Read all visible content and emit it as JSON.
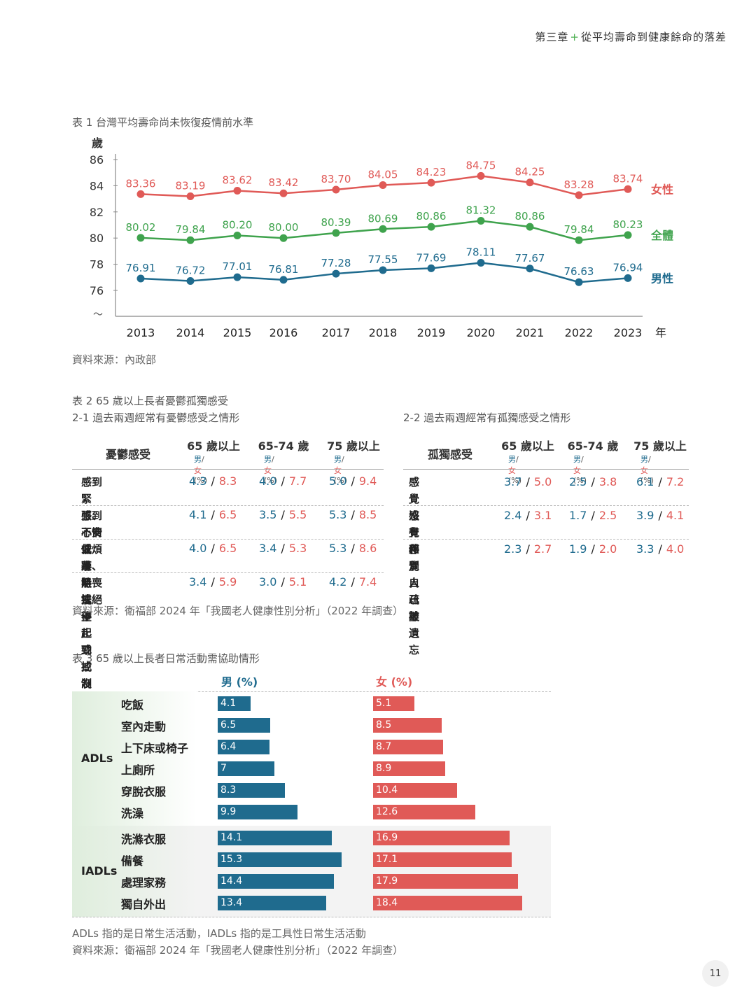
{
  "header": {
    "chapter": "第三章",
    "title": "從平均壽命到健康餘命的落差"
  },
  "table1": {
    "caption": "表 1  台灣平均壽命尚未恢復疫情前水準",
    "source": "資料來源：內政部",
    "colors": {
      "female": "#e05a57",
      "total": "#3fa34d",
      "male": "#1f6b8e"
    },
    "chart_data": {
      "type": "line",
      "ylabel": "歲",
      "xlabel": "年",
      "y_ticks": [
        "86",
        "84",
        "82",
        "80",
        "78",
        "76"
      ],
      "y_break": "～",
      "ylim": [
        75,
        86
      ],
      "x": [
        "2013",
        "2014",
        "2015",
        "2016",
        "2017",
        "2018",
        "2019",
        "2020",
        "2021",
        "2022",
        "2023"
      ],
      "series": [
        {
          "name": "女性",
          "values": [
            83.36,
            83.19,
            83.62,
            83.42,
            83.7,
            84.05,
            84.23,
            84.75,
            84.25,
            83.28,
            83.74
          ],
          "labels": [
            "83.36",
            "83.19",
            "83.62",
            "83.42",
            "83.70",
            "84.05",
            "84.23",
            "84.75",
            "84.25",
            "83.28",
            "83.74"
          ]
        },
        {
          "name": "全體",
          "values": [
            80.02,
            79.84,
            80.2,
            80.0,
            80.39,
            80.69,
            80.86,
            81.32,
            80.86,
            79.84,
            80.23
          ],
          "labels": [
            "80.02",
            "79.84",
            "80.20",
            "80.00",
            "80.39",
            "80.69",
            "80.86",
            "81.32",
            "80.86",
            "79.84",
            "80.23"
          ]
        },
        {
          "name": "男性",
          "values": [
            76.91,
            76.72,
            77.01,
            76.81,
            77.28,
            77.55,
            77.69,
            78.11,
            77.67,
            76.63,
            76.94
          ],
          "labels": [
            "76.91",
            "76.72",
            "77.01",
            "76.81",
            "77.28",
            "77.55",
            "77.69",
            "78.11",
            "77.67",
            "76.63",
            "76.94"
          ]
        }
      ]
    }
  },
  "table2": {
    "caption": "表 2  65 歲以上長者憂鬱孤獨感受",
    "left_title": "2-1  過去兩週經常有憂鬱感受之情形",
    "right_title": "2-2  過去兩週經常有孤獨感受之情形",
    "col_heads": [
      "65 歲以上",
      "65-74 歲",
      "75 歲以上"
    ],
    "sub_male": "男",
    "sub_sep": "/",
    "sub_female": "女",
    "sub_unit": " (%)",
    "left_head": "憂鬱感受",
    "right_head": "孤獨感受",
    "left_rows": [
      {
        "label1": "感到緊張、",
        "label2": "不安或煩躁",
        "vals": [
          [
            "4.3",
            "8.3"
          ],
          [
            "4.0",
            "7.7"
          ],
          [
            "5.0",
            "9.4"
          ]
        ]
      },
      {
        "label1": "感到心情低落、",
        "label2": "沮喪或絕望",
        "vals": [
          [
            "4.1",
            "6.5"
          ],
          [
            "3.5",
            "5.5"
          ],
          [
            "5.3",
            "8.5"
          ]
        ]
      },
      {
        "label1": "做事時提不起勁或",
        "label2": "沒有樂趣",
        "vals": [
          [
            "4.0",
            "6.5"
          ],
          [
            "3.4",
            "5.3"
          ],
          [
            "5.3",
            "8.6"
          ]
        ]
      },
      {
        "label1": "無法停止或控制憂鬱",
        "label2": "",
        "vals": [
          [
            "3.4",
            "5.9"
          ],
          [
            "3.0",
            "5.1"
          ],
          [
            "4.2",
            "7.4"
          ]
        ]
      }
    ],
    "right_rows": [
      {
        "label": "感覺沒有伴",
        "vals": [
          [
            "3.7",
            "5.0"
          ],
          [
            "2.5",
            "3.8"
          ],
          [
            "6.1",
            "7.2"
          ]
        ]
      },
      {
        "label": "感覺和別人疏離",
        "vals": [
          [
            "2.4",
            "3.1"
          ],
          [
            "1.7",
            "2.5"
          ],
          [
            "3.9",
            "4.1"
          ]
        ]
      },
      {
        "label": "感覺自己被遺忘",
        "vals": [
          [
            "2.3",
            "2.7"
          ],
          [
            "1.9",
            "2.0"
          ],
          [
            "3.3",
            "4.0"
          ]
        ]
      }
    ],
    "source": "資料來源：衛福部 2024 年「我國老人健康性別分析」（2022 年調查）"
  },
  "table3": {
    "caption": "表 3  65 歲以上長者日常活動需協助情形",
    "male_head": "男 (%)",
    "female_head": "女 (%)",
    "chart_data": {
      "type": "bar",
      "groups": [
        {
          "name": "ADLs",
          "categories": [
            "吃飯",
            "室內走動",
            "上下床或椅子",
            "上廁所",
            "穿脫衣服",
            "洗澡"
          ],
          "male": [
            4.1,
            6.5,
            6.4,
            7,
            8.3,
            9.9
          ],
          "female": [
            5.1,
            8.5,
            8.7,
            8.9,
            10.4,
            12.6
          ]
        },
        {
          "name": "IADLs",
          "categories": [
            "洗滌衣服",
            "備餐",
            "處理家務",
            "獨自外出"
          ],
          "male": [
            14.1,
            15.3,
            14.4,
            13.4
          ],
          "female": [
            16.9,
            17.1,
            17.9,
            18.4
          ]
        }
      ]
    },
    "note": "ADLs 指的是日常生活活動，IADLs 指的是工具性日常生活活動",
    "source": "資料來源：衛福部 2024 年「我國老人健康性別分析」（2022 年調查）"
  },
  "page_number": "11"
}
